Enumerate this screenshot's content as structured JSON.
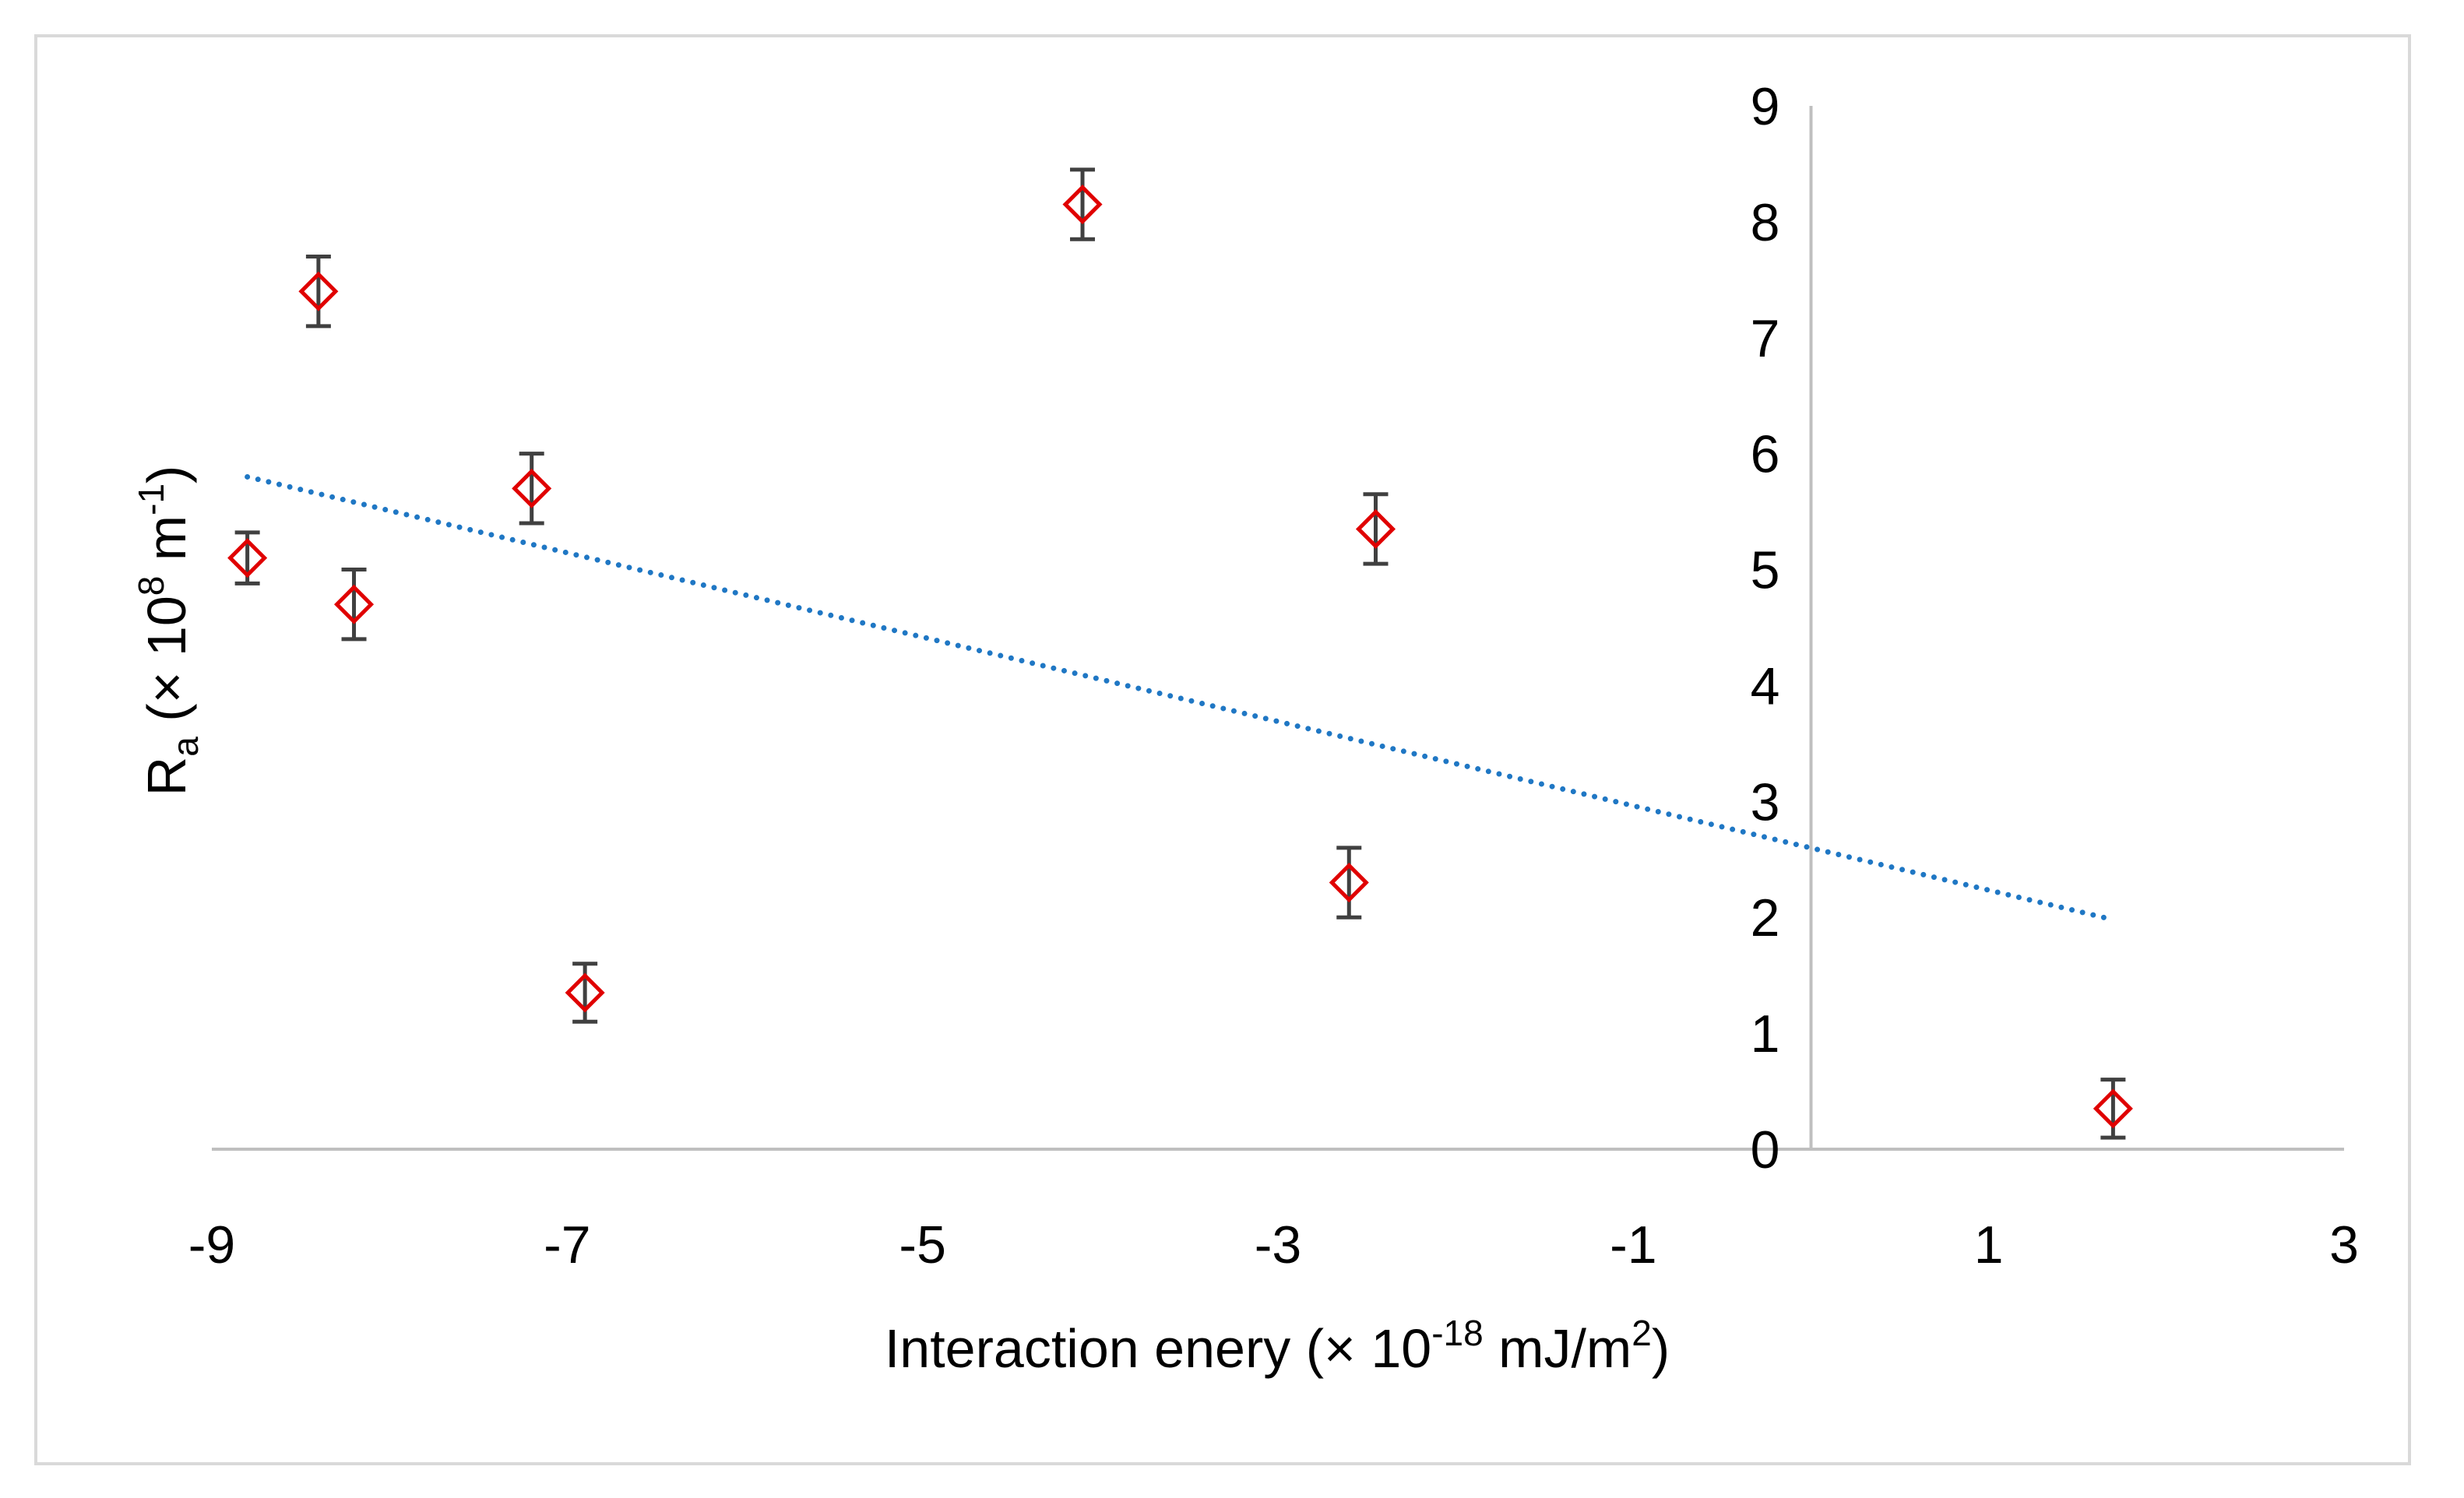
{
  "chart_data": {
    "type": "scatter",
    "title": "",
    "xlabel": {
      "main": "Interaction enery (× 10",
      "exp": "-18",
      "unit": " mJ/m",
      "unit_exp": "2",
      "close": ")"
    },
    "ylabel": {
      "main": "R",
      "sub": "a",
      "mid": " (× 10",
      "exp": "8",
      "unit": " m",
      "unit_exp": "-1",
      "close": ")"
    },
    "xlim": [
      -9,
      3
    ],
    "ylim": [
      0,
      9
    ],
    "x_ticks": [
      -9,
      -7,
      -5,
      -3,
      -1,
      1,
      3
    ],
    "x_tick_labels": [
      "-9",
      "-7",
      "-5",
      "-3",
      "-1",
      "1",
      "3"
    ],
    "y_ticks": [
      0,
      1,
      2,
      3,
      4,
      5,
      6,
      7,
      8,
      9
    ],
    "y_tick_labels": [
      "0",
      "1",
      "2",
      "3",
      "4",
      "5",
      "6",
      "7",
      "8",
      "9"
    ],
    "y_axis_at_x": 0,
    "grid": false,
    "series": [
      {
        "name": "Ra",
        "marker": "diamond",
        "color": "#e00000",
        "error_bar_color": "#404040",
        "points": [
          {
            "x": -8.8,
            "y": 5.1,
            "err": 0.22
          },
          {
            "x": -8.4,
            "y": 7.4,
            "err": 0.3
          },
          {
            "x": -8.2,
            "y": 4.7,
            "err": 0.3
          },
          {
            "x": -7.2,
            "y": 5.7,
            "err": 0.3
          },
          {
            "x": -6.9,
            "y": 1.35,
            "err": 0.25
          },
          {
            "x": -4.1,
            "y": 8.15,
            "err": 0.3
          },
          {
            "x": -2.6,
            "y": 2.3,
            "err": 0.3
          },
          {
            "x": -2.45,
            "y": 5.35,
            "err": 0.3
          },
          {
            "x": 1.7,
            "y": 0.35,
            "err": 0.25
          }
        ]
      }
    ],
    "trendline": {
      "type": "linear",
      "color": "#1f77c4",
      "style": "dotted",
      "x": [
        -8.8,
        1.7
      ],
      "y": [
        5.8,
        1.98
      ]
    }
  }
}
